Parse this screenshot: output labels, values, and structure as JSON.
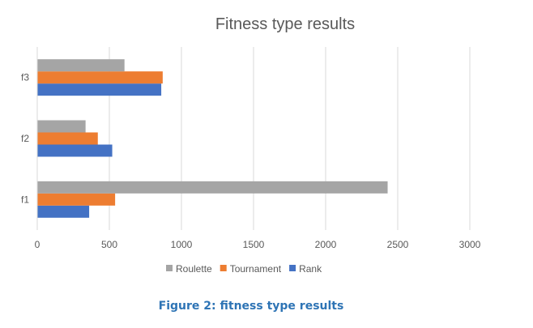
{
  "chart_data": {
    "type": "bar",
    "orientation": "horizontal",
    "title": "Fitness type results",
    "categories": [
      "f1",
      "f2",
      "f3"
    ],
    "series": [
      {
        "name": "Rank",
        "color": "#4472c4",
        "values": [
          360,
          520,
          860
        ]
      },
      {
        "name": "Tournament",
        "color": "#ed7d31",
        "values": [
          540,
          420,
          870
        ]
      },
      {
        "name": "Roulette",
        "color": "#a5a5a5",
        "values": [
          2430,
          335,
          605
        ]
      }
    ],
    "legend_order": [
      "Roulette",
      "Tournament",
      "Rank"
    ],
    "xlim": [
      0,
      3000
    ],
    "xticks": [
      0,
      500,
      1000,
      1500,
      2000,
      2500,
      3000
    ],
    "xlabel": "",
    "ylabel": "",
    "grid": "vertical",
    "legend_position": "bottom"
  },
  "caption": "Figure 2: fitness type results"
}
